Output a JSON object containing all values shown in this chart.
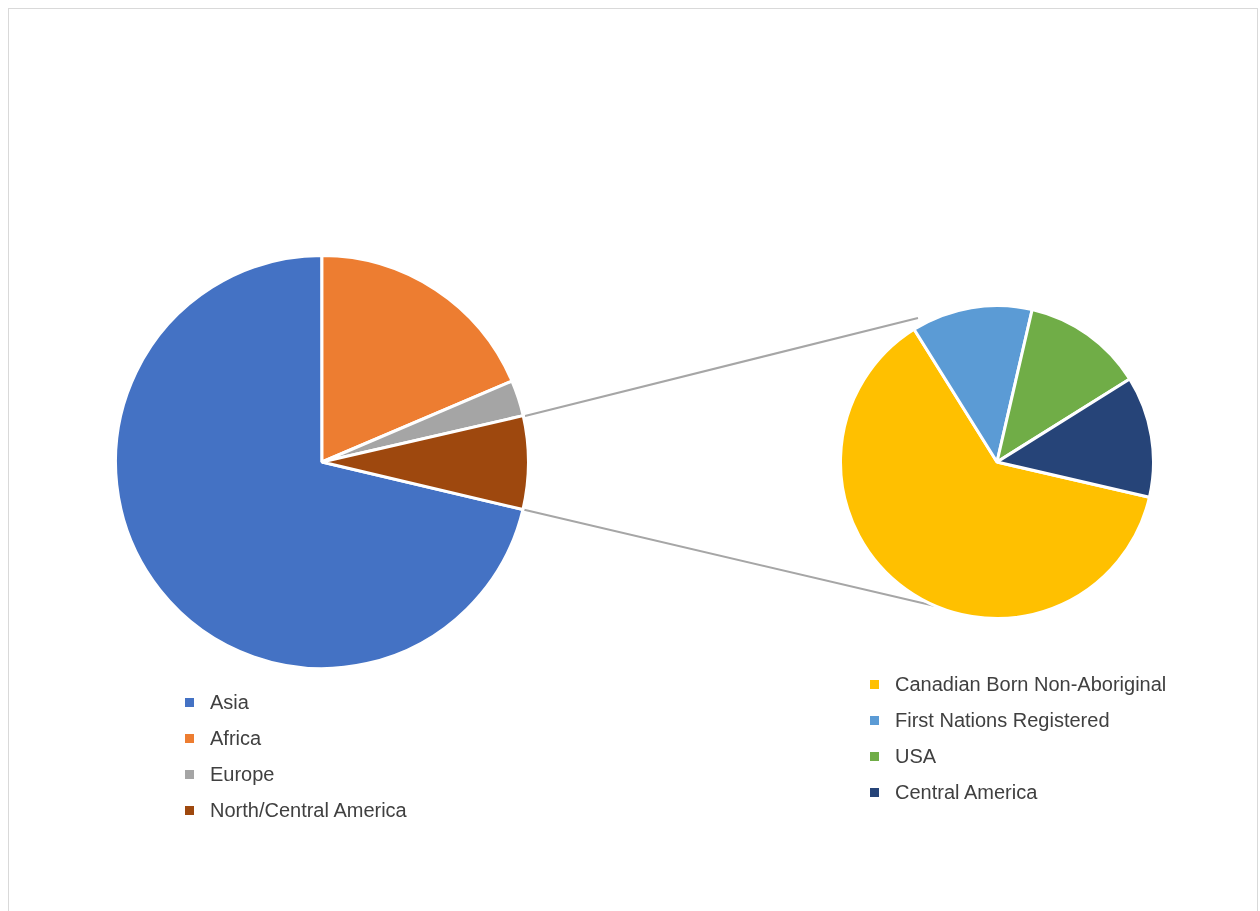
{
  "chart_data": [
    {
      "type": "pie",
      "categories": [
        "Asia",
        "Africa",
        "Europe",
        "North/Central America"
      ],
      "values": [
        71.3,
        18.6,
        2.8,
        7.3
      ],
      "colors": [
        "#4472c4",
        "#ed7d31",
        "#a5a5a5",
        "#9e480e"
      ],
      "legend": "bottom left"
    },
    {
      "type": "pie",
      "categories": [
        "Canadian Born Non-Aboriginal",
        "First Nations Registered",
        "USA",
        "Central America"
      ],
      "values": [
        62.5,
        12.5,
        12.5,
        12.5
      ],
      "colors": [
        "#ffc000",
        "#5b9bd5",
        "#70ad47",
        "#264478"
      ],
      "legend": "bottom"
    }
  ]
}
